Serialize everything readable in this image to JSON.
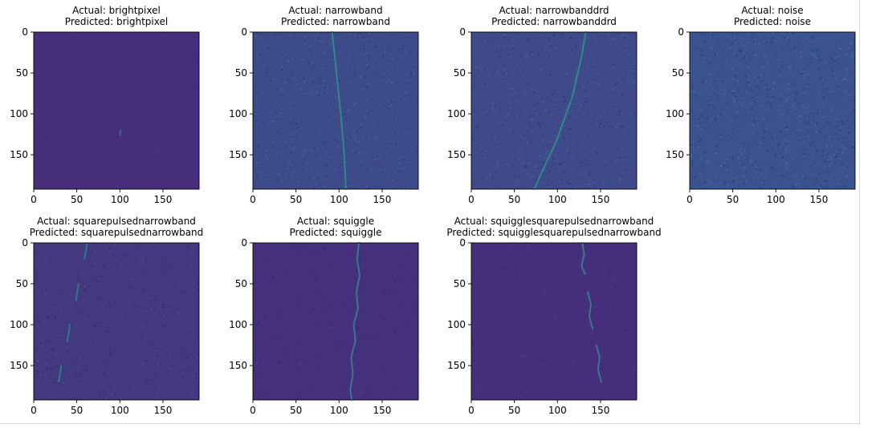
{
  "chart_data": [
    {
      "type": "heatmap",
      "title_actual": "Actual: brightpixel",
      "title_predicted": "Predicted: brightpixel",
      "xticks": [
        0,
        50,
        100,
        150
      ],
      "yticks": [
        0,
        50,
        100,
        150
      ],
      "xlim": [
        0,
        192
      ],
      "ylim": [
        192,
        0
      ],
      "background_color": "#472e7c",
      "noise_level": 0.05,
      "signal_color": "#3b6e8c",
      "signal": [
        [
          [
            101,
            120
          ],
          [
            100,
            126
          ]
        ]
      ]
    },
    {
      "type": "heatmap",
      "title_actual": "Actual: narrowband",
      "title_predicted": "Predicted: narrowband",
      "xticks": [
        0,
        50,
        100,
        150
      ],
      "yticks": [
        0,
        50,
        100,
        150
      ],
      "xlim": [
        0,
        192
      ],
      "ylim": [
        192,
        0
      ],
      "background_color": "#3d4b8b",
      "noise_level": 0.4,
      "signal_color": "#2f8f8a",
      "signal": [
        [
          [
            92,
            0
          ],
          [
            97,
            50
          ],
          [
            102,
            100
          ],
          [
            106,
            150
          ],
          [
            108,
            192
          ]
        ]
      ]
    },
    {
      "type": "heatmap",
      "title_actual": "Actual: narrowbanddrd",
      "title_predicted": "Predicted: narrowbanddrd",
      "xticks": [
        0,
        50,
        100,
        150
      ],
      "yticks": [
        0,
        50,
        100,
        150
      ],
      "xlim": [
        0,
        192
      ],
      "ylim": [
        192,
        0
      ],
      "background_color": "#3e4a8a",
      "noise_level": 0.4,
      "signal_color": "#2f8f8a",
      "signal": [
        [
          [
            133,
            0
          ],
          [
            128,
            30
          ],
          [
            117,
            80
          ],
          [
            100,
            130
          ],
          [
            87,
            160
          ],
          [
            73,
            192
          ]
        ]
      ]
    },
    {
      "type": "heatmap",
      "title_actual": "Actual: noise",
      "title_predicted": "Predicted: noise",
      "xticks": [
        0,
        50,
        100,
        150
      ],
      "yticks": [
        0,
        50,
        100,
        150
      ],
      "xlim": [
        0,
        192
      ],
      "ylim": [
        192,
        0
      ],
      "background_color": "#3a5290",
      "noise_level": 0.55,
      "signal_color": "#2f8f8a",
      "signal": []
    },
    {
      "type": "heatmap",
      "title_actual": "Actual: squarepulsednarrowband",
      "title_predicted": "Predicted: squarepulsednarrowband",
      "xticks": [
        0,
        50,
        100,
        150
      ],
      "yticks": [
        0,
        50,
        100,
        150
      ],
      "xlim": [
        0,
        192
      ],
      "ylim": [
        192,
        0
      ],
      "background_color": "#43397f",
      "noise_level": 0.3,
      "signal_color": "#2d7f8c",
      "signal": [
        [
          [
            62,
            0
          ],
          [
            59,
            20
          ]
        ],
        [
          [
            52,
            50
          ],
          [
            49,
            70
          ]
        ],
        [
          [
            42,
            100
          ],
          [
            39,
            120
          ]
        ],
        [
          [
            32,
            150
          ],
          [
            29,
            170
          ]
        ]
      ]
    },
    {
      "type": "heatmap",
      "title_actual": "Actual: squiggle",
      "title_predicted": "Predicted: squiggle",
      "xticks": [
        0,
        50,
        100,
        150
      ],
      "yticks": [
        0,
        50,
        100,
        150
      ],
      "xlim": [
        0,
        192
      ],
      "ylim": [
        192,
        0
      ],
      "background_color": "#44307c",
      "noise_level": 0.12,
      "signal_color": "#3a7f8c",
      "signal": [
        [
          [
            123,
            0
          ],
          [
            121,
            20
          ],
          [
            124,
            40
          ],
          [
            120,
            60
          ],
          [
            122,
            80
          ],
          [
            117,
            100
          ],
          [
            119,
            120
          ],
          [
            114,
            140
          ],
          [
            116,
            160
          ],
          [
            113,
            180
          ],
          [
            115,
            192
          ]
        ]
      ]
    },
    {
      "type": "heatmap",
      "title_actual": "Actual: squigglesquarepulsednarrowband",
      "title_predicted": "Predicted: squigglesquarepulsednarrowband",
      "xticks": [
        0,
        50,
        100,
        150
      ],
      "yticks": [
        0,
        50,
        100,
        150
      ],
      "xlim": [
        0,
        192
      ],
      "ylim": [
        192,
        0
      ],
      "background_color": "#452f7c",
      "noise_level": 0.15,
      "signal_color": "#3a7f8c",
      "signal": [
        [
          [
            129,
            0
          ],
          [
            131,
            15
          ],
          [
            128,
            28
          ],
          [
            132,
            38
          ]
        ],
        [
          [
            135,
            60
          ],
          [
            139,
            75
          ],
          [
            137,
            90
          ],
          [
            141,
            105
          ]
        ],
        [
          [
            145,
            125
          ],
          [
            149,
            140
          ],
          [
            147,
            155
          ],
          [
            151,
            170
          ]
        ]
      ]
    }
  ]
}
